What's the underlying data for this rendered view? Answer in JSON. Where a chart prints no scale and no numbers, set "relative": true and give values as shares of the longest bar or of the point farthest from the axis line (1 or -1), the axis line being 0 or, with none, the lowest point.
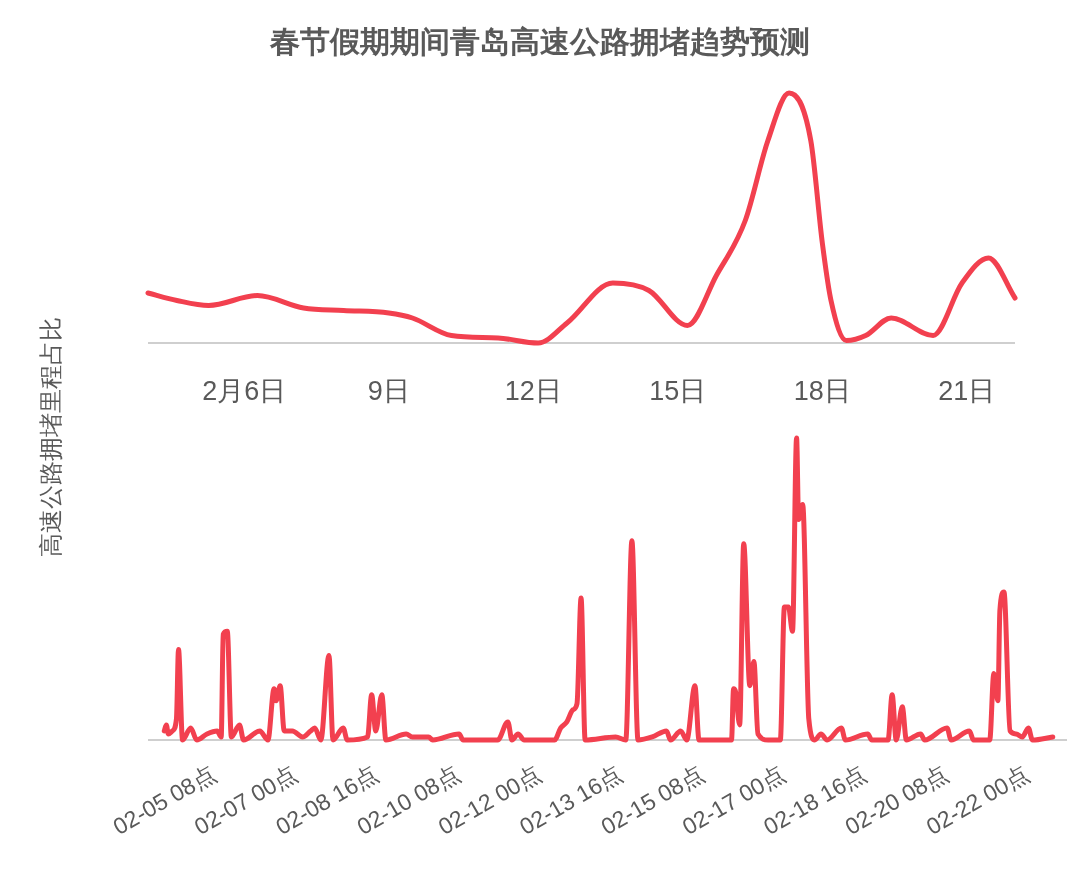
{
  "chart_data": [
    {
      "type": "line",
      "title": "春节假期期间青岛高速公路拥堵趋势预测",
      "ylabel": "高速公路拥堵里程占比",
      "relative": true,
      "x": [
        4,
        4.6,
        5.26,
        6.27,
        7.23,
        8.06,
        9.0,
        9.49,
        10.3,
        11.27,
        12.1,
        12.7,
        13.65,
        14.4,
        15.2,
        15.8,
        16.4,
        16.87,
        17.31,
        17.76,
        18.0,
        18.18,
        18.5,
        18.9,
        19.43,
        20.3,
        20.9,
        21.45,
        22
      ],
      "series": [
        {
          "color": "#f2404f",
          "values": [
            0.2,
            0.17,
            0.15,
            0.19,
            0.14,
            0.13,
            0.12,
            0.1,
            0.03,
            0.02,
            0,
            0.08,
            0.24,
            0.21,
            0.07,
            0.27,
            0.49,
            0.81,
            1,
            0.81,
            0.4,
            0.17,
            0.01,
            0.03,
            0.1,
            0.03,
            0.24,
            0.34,
            0.18
          ]
        }
      ],
      "xlim": [
        4,
        22
      ],
      "xticks": [
        {
          "value": 6,
          "label": "2月6日"
        },
        {
          "value": 9,
          "label": "9日"
        },
        {
          "value": 12,
          "label": "12日"
        },
        {
          "value": 15,
          "label": "15日"
        },
        {
          "value": 18,
          "label": "18日"
        },
        {
          "value": 21,
          "label": "21日"
        }
      ]
    },
    {
      "type": "line",
      "relative": true,
      "x": [
        "--02-05T08:00",
        "--02-05T09:00",
        "--02-05T10:00",
        "--02-05T12:00",
        "--02-05T14:00",
        "--02-05T15:00",
        "--02-05T17:00",
        "--02-05T21:00",
        "--02-06T00:00",
        "--02-06T05:00",
        "--02-06T10:00",
        "--02-06T12:00",
        "--02-06T13:00",
        "--02-06T15:00",
        "--02-06T17:00",
        "--02-06T21:00",
        "--02-06T23:00",
        "--02-07T07:00",
        "--02-07T11:00",
        "--02-07T14:00",
        "--02-07T15:00",
        "--02-07T17:00",
        "--02-07T19:00",
        "--02-07T23:00",
        "--02-08T04:00",
        "--02-08T08:00",
        "--02-08T10:00",
        "--02-08T13:00",
        "--02-08T17:00",
        "--02-08T19:00",
        "--02-09T00:00",
        "--02-09T02:00",
        "--02-09T12:00",
        "--02-09T14:00",
        "--02-09T16:00",
        "--02-09T19:00",
        "--02-09T21:00",
        "--02-10T07:00",
        "--02-10T10:00",
        "--02-10T18:00",
        "--02-10T20:00",
        "--02-11T09:00",
        "--02-11T11:00",
        "--02-12T04:00",
        "--02-12T09:00",
        "--02-12T11:00",
        "--02-12T14:00",
        "--02-12T17:00",
        "--02-13T08:00",
        "--02-13T11:00",
        "--02-13T14:00",
        "--02-13T17:00",
        "--02-13T19:00",
        "--02-13T21:00",
        "--02-13T23:00",
        "--02-14T14:00",
        "--02-14T19:00",
        "--02-14T22:00",
        "--02-15T01:00",
        "--02-15T08:00",
        "--02-15T15:00",
        "--02-15T17:00",
        "--02-15T22:00",
        "--02-16T01:00",
        "--02-16T05:00",
        "--02-16T07:00",
        "--02-16T23:00",
        "--02-17T00:00",
        "--02-17T01:00",
        "--02-17T03:00",
        "--02-17T05:00",
        "--02-17T08:00",
        "--02-17T10:00",
        "--02-17T12:00",
        "--02-17T17:00",
        "--02-17T23:00",
        "--02-18T01:00",
        "--02-18T03:00",
        "--02-18T05:00",
        "--02-18T07:00",
        "--02-18T08:00",
        "--02-18T10:00",
        "--02-18T13:00",
        "--02-18T16:00",
        "--02-18T19:00",
        "--02-18T22:00",
        "--02-19T05:00",
        "--02-19T07:00",
        "--02-19T18:00",
        "--02-19T20:00",
        "--02-20T04:00",
        "--02-20T06:00",
        "--02-20T08:00",
        "--02-20T11:00",
        "--02-20T13:00",
        "--02-20T20:00",
        "--02-20T22:00",
        "--02-21T09:00",
        "--02-21T11:00",
        "--02-21T20:00",
        "--02-21T22:00",
        "--02-22T06:00",
        "--02-22T08:00",
        "--02-22T10:00",
        "--02-22T11:00",
        "--02-22T13:00",
        "--02-22T16:00",
        "--02-22T19:00",
        "--02-22T22:00",
        "--02-23T01:00",
        "--02-23T03:00",
        "--02-23T13:00"
      ],
      "series": [
        {
          "color": "#f2404f",
          "values": [
            0.03,
            0.05,
            0.02,
            0.03,
            0.07,
            0.3,
            0,
            0.04,
            0,
            0.02,
            0.03,
            0.01,
            0.35,
            0.36,
            0.01,
            0.05,
            0,
            0.03,
            0,
            0.17,
            0.13,
            0.18,
            0.03,
            0.03,
            0.01,
            0.03,
            0.04,
            0,
            0.28,
            0,
            0.04,
            0,
            0.01,
            0.15,
            0.03,
            0.15,
            0,
            0.02,
            0.01,
            0.01,
            0,
            0.02,
            0,
            0,
            0.06,
            0,
            0.02,
            0,
            0,
            0.04,
            0.06,
            0.1,
            0.12,
            0.47,
            0,
            0.01,
            0,
            0.66,
            0,
            0.01,
            0.03,
            0,
            0.03,
            0,
            0.18,
            0,
            0,
            0.17,
            0.16,
            0.05,
            0.65,
            0.18,
            0.26,
            0.02,
            0,
            0,
            0.44,
            0.44,
            0.36,
            1,
            0.73,
            0.78,
            0.07,
            0,
            0.02,
            0,
            0.04,
            0,
            0.02,
            0,
            0,
            0.15,
            0,
            0.11,
            0,
            0.02,
            0,
            0.04,
            0,
            0.03,
            0,
            0,
            0.22,
            0.13,
            0.43,
            0.49,
            0.03,
            0.02,
            0.01,
            0.04,
            0,
            0.01
          ]
        }
      ],
      "xlim": [
        "--02-05T00:00",
        "--02-23T20:00"
      ],
      "xticks": [
        {
          "value": "--02-05T08:00",
          "label": "02-05 08点"
        },
        {
          "value": "--02-07T00:00",
          "label": "02-07 00点"
        },
        {
          "value": "--02-08T16:00",
          "label": "02-08 16点"
        },
        {
          "value": "--02-10T08:00",
          "label": "02-10 08点"
        },
        {
          "value": "--02-12T00:00",
          "label": "02-12 00点"
        },
        {
          "value": "--02-13T16:00",
          "label": "02-13 16点"
        },
        {
          "value": "--02-15T08:00",
          "label": "02-15 08点"
        },
        {
          "value": "--02-17T00:00",
          "label": "02-17 00点"
        },
        {
          "value": "--02-18T16:00",
          "label": "02-18 16点"
        },
        {
          "value": "--02-20T08:00",
          "label": "02-20 08点"
        },
        {
          "value": "--02-22T00:00",
          "label": "02-22 00点"
        }
      ]
    }
  ]
}
